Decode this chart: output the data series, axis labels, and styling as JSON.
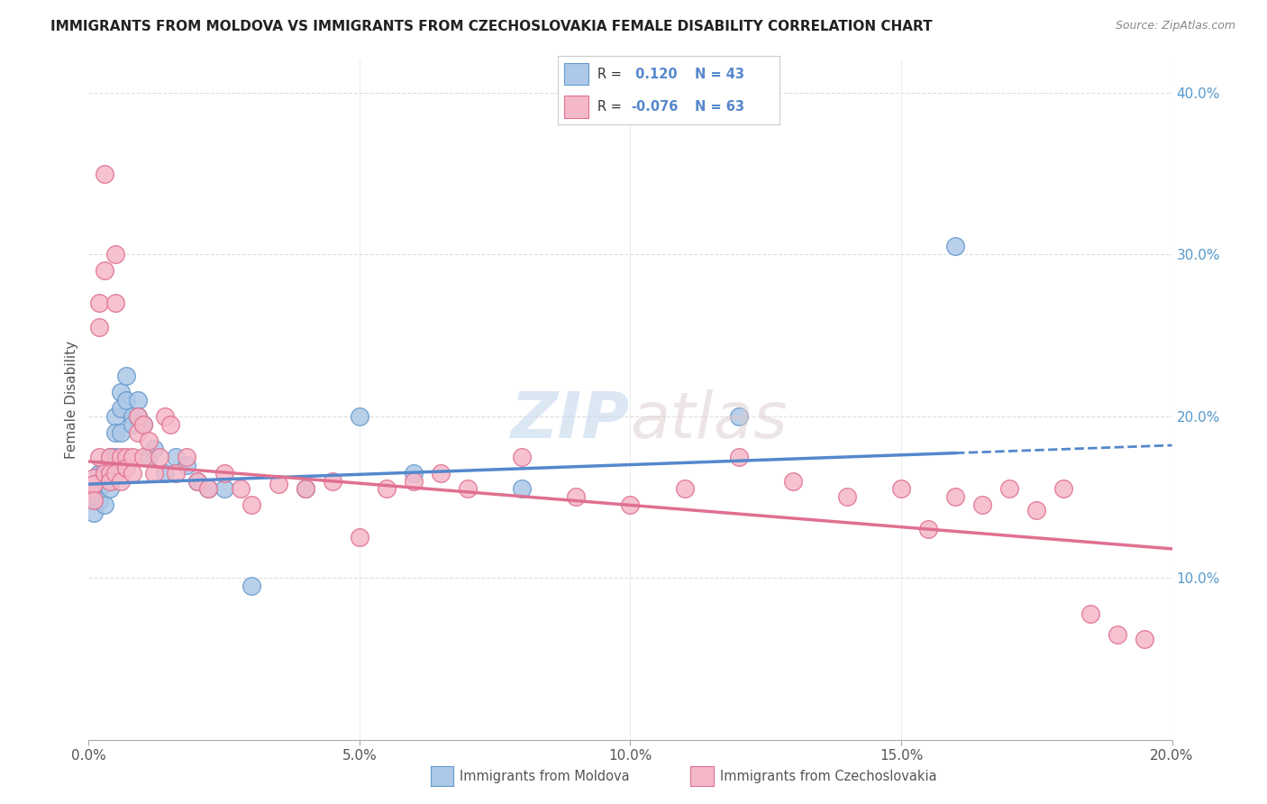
{
  "title": "IMMIGRANTS FROM MOLDOVA VS IMMIGRANTS FROM CZECHOSLOVAKIA FEMALE DISABILITY CORRELATION CHART",
  "source": "Source: ZipAtlas.com",
  "ylabel": "Female Disability",
  "xlabel_moldova": "Immigrants from Moldova",
  "xlabel_czechoslovakia": "Immigrants from Czechoslovakia",
  "xlim": [
    0.0,
    0.2
  ],
  "ylim": [
    0.0,
    0.42
  ],
  "xtick_vals": [
    0.0,
    0.05,
    0.1,
    0.15,
    0.2
  ],
  "ytick_right_vals": [
    0.1,
    0.2,
    0.3,
    0.4
  ],
  "r_moldova": 0.12,
  "n_moldova": 43,
  "r_czechoslovakia": -0.076,
  "n_czechoslovakia": 63,
  "color_moldova_fill": "#adc8e8",
  "color_moldova_edge": "#6699cc",
  "color_czech_fill": "#f5b8c8",
  "color_czech_edge": "#e07090",
  "trend_moldova_color": "#5588cc",
  "trend_czech_color": "#e07090",
  "background_color": "#ffffff",
  "grid_color": "#dddddd",
  "moldova_x": [
    0.0005,
    0.001,
    0.001,
    0.001,
    0.002,
    0.002,
    0.002,
    0.002,
    0.003,
    0.003,
    0.003,
    0.003,
    0.004,
    0.004,
    0.004,
    0.005,
    0.005,
    0.005,
    0.006,
    0.006,
    0.006,
    0.007,
    0.007,
    0.008,
    0.008,
    0.009,
    0.009,
    0.01,
    0.011,
    0.012,
    0.014,
    0.016,
    0.018,
    0.02,
    0.022,
    0.025,
    0.03,
    0.04,
    0.05,
    0.06,
    0.08,
    0.12,
    0.16
  ],
  "moldova_y": [
    0.155,
    0.152,
    0.148,
    0.14,
    0.165,
    0.16,
    0.155,
    0.148,
    0.168,
    0.162,
    0.158,
    0.145,
    0.175,
    0.168,
    0.155,
    0.2,
    0.19,
    0.175,
    0.215,
    0.205,
    0.19,
    0.225,
    0.21,
    0.2,
    0.195,
    0.21,
    0.2,
    0.195,
    0.175,
    0.18,
    0.165,
    0.175,
    0.17,
    0.16,
    0.155,
    0.155,
    0.095,
    0.155,
    0.2,
    0.165,
    0.155,
    0.2,
    0.305
  ],
  "czechoslovakia_x": [
    0.0003,
    0.001,
    0.001,
    0.001,
    0.002,
    0.002,
    0.002,
    0.003,
    0.003,
    0.003,
    0.004,
    0.004,
    0.004,
    0.005,
    0.005,
    0.005,
    0.006,
    0.006,
    0.007,
    0.007,
    0.008,
    0.008,
    0.009,
    0.009,
    0.01,
    0.01,
    0.011,
    0.012,
    0.013,
    0.014,
    0.015,
    0.016,
    0.018,
    0.02,
    0.022,
    0.025,
    0.028,
    0.03,
    0.035,
    0.04,
    0.045,
    0.05,
    0.055,
    0.06,
    0.065,
    0.07,
    0.08,
    0.09,
    0.1,
    0.11,
    0.12,
    0.13,
    0.14,
    0.15,
    0.155,
    0.16,
    0.165,
    0.17,
    0.175,
    0.18,
    0.185,
    0.19,
    0.195
  ],
  "czechoslovakia_y": [
    0.155,
    0.162,
    0.158,
    0.148,
    0.27,
    0.255,
    0.175,
    0.29,
    0.35,
    0.165,
    0.175,
    0.165,
    0.16,
    0.3,
    0.27,
    0.165,
    0.175,
    0.16,
    0.175,
    0.168,
    0.175,
    0.165,
    0.2,
    0.19,
    0.195,
    0.175,
    0.185,
    0.165,
    0.175,
    0.2,
    0.195,
    0.165,
    0.175,
    0.16,
    0.155,
    0.165,
    0.155,
    0.145,
    0.158,
    0.155,
    0.16,
    0.125,
    0.155,
    0.16,
    0.165,
    0.155,
    0.175,
    0.15,
    0.145,
    0.155,
    0.175,
    0.16,
    0.15,
    0.155,
    0.13,
    0.15,
    0.145,
    0.155,
    0.142,
    0.155,
    0.078,
    0.065,
    0.062
  ],
  "trend_mol_x0": 0.0,
  "trend_mol_y0": 0.158,
  "trend_mol_x1": 0.2,
  "trend_mol_y1": 0.182,
  "trend_mol_solid_end": 0.16,
  "trend_czech_x0": 0.0,
  "trend_czech_y0": 0.172,
  "trend_czech_x1": 0.2,
  "trend_czech_y1": 0.118
}
